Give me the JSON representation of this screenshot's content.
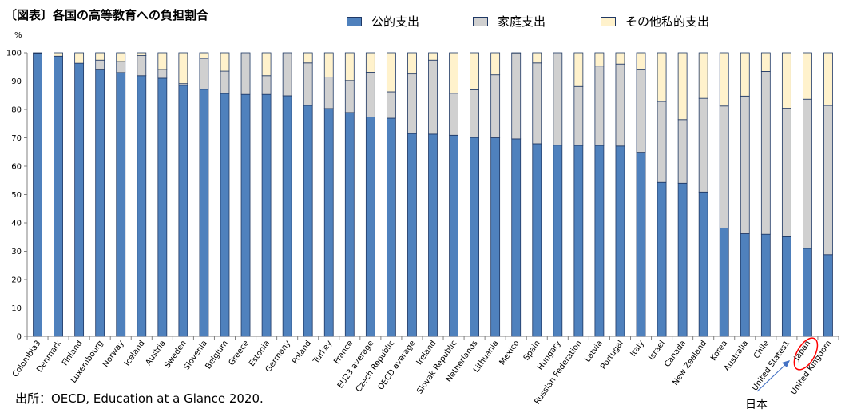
{
  "title": "〔図表〕各国の高等教育への負担割合",
  "unit": "%",
  "source": "出所：OECD, Education at a Glance 2020.",
  "note": "日本",
  "colors": {
    "public": "#4f81bd",
    "household": "#d0d0d0",
    "other": "#fff2cc",
    "border": "#1f3864",
    "highlight": "#ff0000",
    "arrow": "#4472c4"
  },
  "chart_data": {
    "type": "bar",
    "stacked": true,
    "ylim": [
      0,
      100
    ],
    "yticks": [
      0,
      10,
      20,
      30,
      40,
      50,
      60,
      70,
      80,
      90,
      100
    ],
    "grid": false,
    "legend": "top",
    "highlight_category": "Japan",
    "categories": [
      "Colombia3",
      "Denmark",
      "Finland",
      "Luxembourg",
      "Norway",
      "Iceland",
      "Austria",
      "Sweden",
      "Slovenia",
      "Belgium",
      "Greece",
      "Estonia",
      "Germany",
      "Poland",
      "Turkey",
      "France",
      "EU23 average",
      "Czech Republic",
      "OECD average",
      "Ireland",
      "Slovak Republic",
      "Netherlands",
      "Lithuania",
      "Mexico",
      "Spain",
      "Hungary",
      "Russian Federation",
      "Latvia",
      "Portugal",
      "Italy",
      "Israel",
      "Canada",
      "New Zealand",
      "Korea",
      "Australia",
      "Chile",
      "United States1",
      "Japan",
      "United Kingdom"
    ],
    "series": [
      {
        "name": "公的支出",
        "values": [
          99.6,
          98.8,
          96.3,
          94.2,
          93.0,
          91.9,
          91.0,
          88.5,
          87.1,
          85.6,
          85.3,
          85.3,
          84.8,
          81.4,
          80.3,
          78.9,
          77.3,
          76.9,
          71.5,
          71.3,
          70.9,
          70.1,
          70.0,
          69.6,
          67.9,
          67.4,
          67.3,
          67.3,
          67.1,
          64.9,
          54.3,
          54.0,
          50.9,
          38.2,
          36.2,
          36.0,
          35.1,
          31.0,
          28.8
        ]
      },
      {
        "name": "家庭支出",
        "values": [
          0.2,
          0,
          0,
          3.2,
          3.9,
          7.1,
          3.1,
          0.6,
          10.9,
          7.9,
          14.7,
          6.6,
          15.2,
          15.0,
          11.1,
          11.3,
          15.8,
          9.3,
          21.0,
          26.1,
          14.8,
          16.8,
          22.2,
          30.1,
          28.5,
          32.6,
          20.8,
          28.0,
          28.9,
          29.3,
          28.5,
          22.4,
          33.0,
          43.0,
          48.5,
          57.4,
          45.3,
          52.6,
          52.6
        ]
      },
      {
        "name": "その他私的支出",
        "values": [
          0.2,
          1.2,
          3.7,
          2.6,
          3.1,
          1.0,
          5.9,
          10.9,
          2.0,
          6.5,
          0,
          8.1,
          0,
          3.6,
          8.6,
          9.8,
          6.9,
          13.8,
          7.5,
          2.6,
          14.3,
          13.1,
          7.8,
          0.3,
          3.6,
          0,
          11.9,
          4.7,
          4.0,
          5.8,
          17.2,
          23.6,
          16.1,
          18.8,
          15.3,
          6.6,
          19.6,
          16.4,
          18.6
        ]
      }
    ]
  }
}
